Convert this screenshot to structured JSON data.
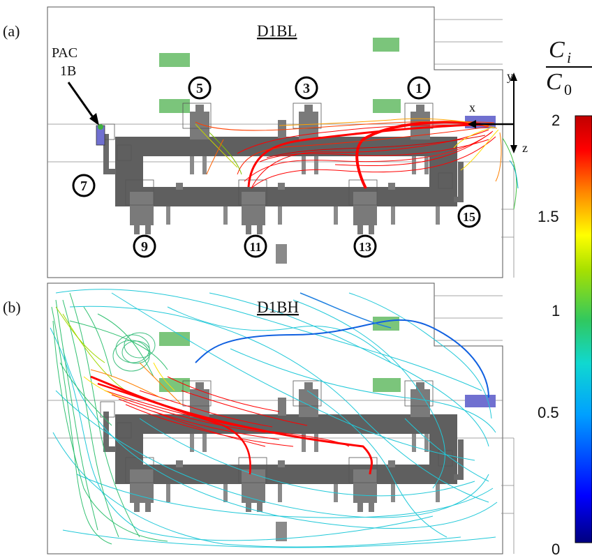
{
  "panels": [
    {
      "label": "(a)",
      "title": "D1BL"
    },
    {
      "label": "(b)",
      "title": "D1BH"
    }
  ],
  "pac": {
    "line1": "PAC",
    "line2": "1B"
  },
  "axes": {
    "x": "x",
    "y": "y",
    "z": "z"
  },
  "outlets_top": [
    "5",
    "3",
    "1"
  ],
  "outlets_side": [
    "7",
    "15"
  ],
  "outlets_bottom": [
    "9",
    "11",
    "13"
  ],
  "colorbar": {
    "numerator": "C",
    "numerator_sub": "i",
    "denominator": "C",
    "denominator_sub": "0",
    "ticks": [
      "2",
      "1.5",
      "1",
      "0.5",
      "0"
    ],
    "range": [
      0,
      2
    ],
    "colors": [
      "#00007f",
      "#0000ff",
      "#00a0ff",
      "#00e0e0",
      "#30d060",
      "#a0e000",
      "#ffff00",
      "#ff8000",
      "#ff0000",
      "#c00000"
    ]
  },
  "colors": {
    "machine": "#5f5f5f",
    "machine_light": "#8a8a8a",
    "vent_green": "#6dbf6d",
    "inlet_blue": "#7070d0"
  }
}
